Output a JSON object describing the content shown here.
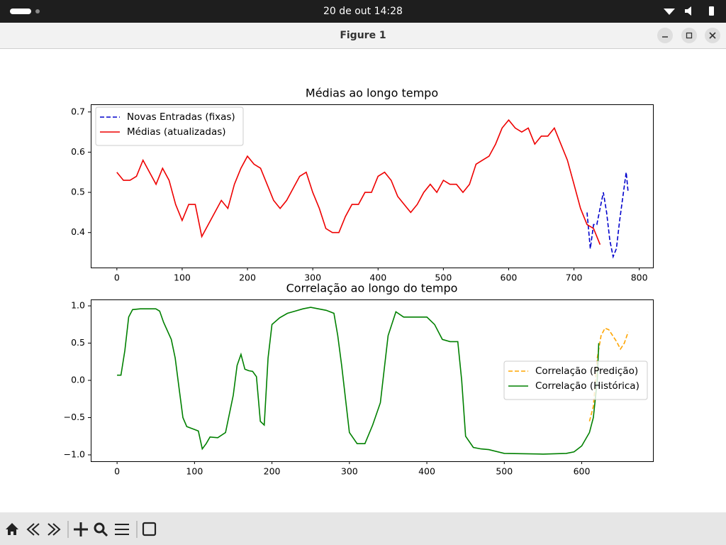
{
  "top_bar": {
    "clock": "20 de out  14:28"
  },
  "window": {
    "title": "Figure 1"
  },
  "chart_data": [
    {
      "type": "line",
      "title": "Médias ao longo tempo",
      "xlim": [
        -40,
        821
      ],
      "ylim": [
        0.313,
        0.719
      ],
      "xticks": [
        0,
        100,
        200,
        300,
        400,
        500,
        600,
        700,
        800
      ],
      "yticks": [
        0.4,
        0.5,
        0.6,
        0.7
      ],
      "legend": "upper left",
      "series": [
        {
          "name": "Novas Entradas (fixas)",
          "color": "#0000cc",
          "linestyle": "dashed",
          "x": [
            720,
            725,
            730,
            735,
            740,
            745,
            750,
            755,
            760,
            765,
            770,
            775,
            780,
            783
          ],
          "values": [
            0.45,
            0.36,
            0.42,
            0.42,
            0.46,
            0.5,
            0.45,
            0.38,
            0.34,
            0.36,
            0.43,
            0.49,
            0.55,
            0.5
          ]
        },
        {
          "name": "Médias (atualizadas)",
          "color": "#ee0000",
          "linestyle": "solid",
          "x": [
            0,
            10,
            20,
            30,
            40,
            50,
            60,
            70,
            80,
            90,
            100,
            110,
            120,
            130,
            140,
            150,
            160,
            170,
            180,
            190,
            200,
            210,
            220,
            230,
            240,
            250,
            260,
            270,
            280,
            290,
            300,
            310,
            320,
            330,
            340,
            350,
            360,
            370,
            380,
            390,
            400,
            410,
            420,
            430,
            440,
            450,
            460,
            470,
            480,
            490,
            500,
            510,
            520,
            530,
            540,
            550,
            560,
            570,
            580,
            590,
            600,
            610,
            620,
            630,
            640,
            650,
            660,
            670,
            680,
            690,
            700,
            710,
            720,
            730,
            740
          ],
          "values": [
            0.55,
            0.53,
            0.53,
            0.54,
            0.58,
            0.55,
            0.52,
            0.56,
            0.53,
            0.47,
            0.43,
            0.47,
            0.47,
            0.39,
            0.42,
            0.45,
            0.48,
            0.46,
            0.52,
            0.56,
            0.59,
            0.57,
            0.56,
            0.52,
            0.48,
            0.46,
            0.48,
            0.51,
            0.54,
            0.55,
            0.5,
            0.46,
            0.41,
            0.4,
            0.4,
            0.44,
            0.47,
            0.47,
            0.5,
            0.5,
            0.54,
            0.55,
            0.53,
            0.49,
            0.47,
            0.45,
            0.47,
            0.5,
            0.52,
            0.5,
            0.53,
            0.52,
            0.52,
            0.5,
            0.52,
            0.57,
            0.58,
            0.59,
            0.62,
            0.66,
            0.68,
            0.66,
            0.65,
            0.66,
            0.62,
            0.64,
            0.64,
            0.66,
            0.62,
            0.58,
            0.52,
            0.46,
            0.42,
            0.41,
            0.37
          ]
        }
      ]
    },
    {
      "type": "line",
      "title": "Correlação ao longo do tempo",
      "xlim": [
        -34,
        692
      ],
      "ylim": [
        -1.086,
        1.086
      ],
      "xticks": [
        0,
        100,
        200,
        300,
        400,
        500,
        600
      ],
      "yticks": [
        {
          "value": -1,
          "label": "−1.0"
        },
        {
          "value": -0.5,
          "label": "−0.5"
        },
        {
          "value": 0,
          "label": "0.0"
        },
        0.5,
        {
          "value": 1,
          "label": "1.0"
        }
      ],
      "legend": "center right",
      "series": [
        {
          "name": "Correlação (Predição)",
          "color": "#ffa500",
          "linestyle": "dashed",
          "x": [
            610,
            615,
            620,
            625,
            630,
            635,
            640,
            645,
            650,
            655,
            660
          ],
          "values": [
            -0.55,
            -0.35,
            0.3,
            0.6,
            0.7,
            0.68,
            0.6,
            0.52,
            0.42,
            0.5,
            0.65
          ]
        },
        {
          "name": "Correlação (Histórica)",
          "color": "#008000",
          "linestyle": "solid",
          "x": [
            0,
            5,
            10,
            15,
            20,
            30,
            40,
            50,
            55,
            60,
            70,
            75,
            80,
            85,
            90,
            100,
            105,
            110,
            115,
            120,
            130,
            140,
            150,
            155,
            160,
            165,
            170,
            175,
            180,
            185,
            190,
            195,
            200,
            210,
            220,
            230,
            240,
            250,
            260,
            270,
            280,
            285,
            290,
            300,
            310,
            320,
            330,
            340,
            350,
            360,
            370,
            380,
            390,
            400,
            410,
            420,
            430,
            440,
            445,
            450,
            460,
            470,
            480,
            500,
            550,
            580,
            590,
            600,
            610,
            615,
            620,
            622
          ],
          "values": [
            0.07,
            0.07,
            0.4,
            0.85,
            0.95,
            0.96,
            0.96,
            0.96,
            0.93,
            0.78,
            0.55,
            0.3,
            -0.1,
            -0.5,
            -0.62,
            -0.66,
            -0.68,
            -0.92,
            -0.85,
            -0.76,
            -0.77,
            -0.7,
            -0.2,
            0.2,
            0.35,
            0.15,
            0.13,
            0.12,
            0.05,
            -0.55,
            -0.6,
            0.3,
            0.75,
            0.84,
            0.9,
            0.93,
            0.96,
            0.98,
            0.96,
            0.94,
            0.9,
            0.6,
            0.2,
            -0.7,
            -0.85,
            -0.85,
            -0.6,
            -0.3,
            0.6,
            0.92,
            0.85,
            0.85,
            0.85,
            0.85,
            0.75,
            0.55,
            0.52,
            0.52,
            0,
            -0.75,
            -0.9,
            -0.92,
            -0.93,
            -0.98,
            -0.99,
            -0.98,
            -0.96,
            -0.88,
            -0.7,
            -0.5,
            0,
            0.5
          ]
        }
      ]
    }
  ]
}
